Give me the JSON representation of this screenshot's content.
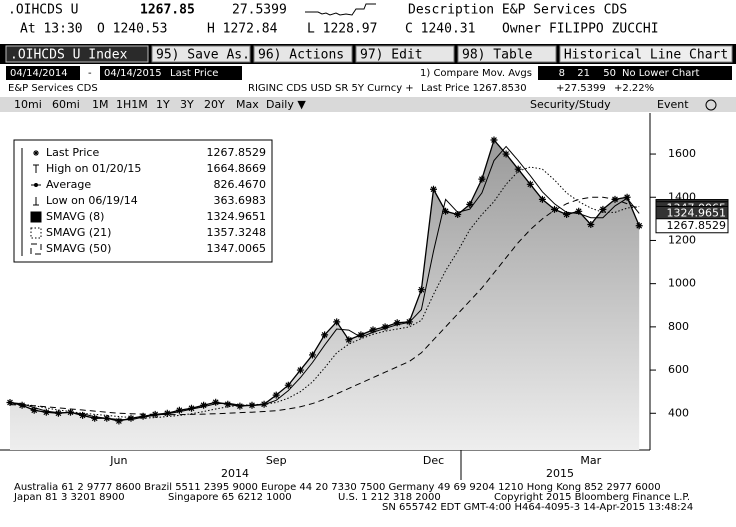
{
  "header": {
    "ticker": ".OIHCDS U",
    "last": "1267.85",
    "change": "27.5399",
    "description": "Description E&P Services CDS",
    "time": "At 13:30",
    "open": "O 1240.53",
    "high": "H 1272.84",
    "low": "L 1228.97",
    "close": "C 1240.31",
    "owner": "Owner FILIPPO ZUCCHI"
  },
  "toolbar": {
    "security": ".OIHCDS U Index",
    "buttons": [
      "95) Save As...",
      "96) Actions",
      "97) Edit",
      "98) Table"
    ],
    "view": "Historical Line Chart"
  },
  "range": {
    "start": "04/14/2014",
    "separator": "-",
    "end": "04/14/2015",
    "field": "Last Price",
    "compare": "1) Compare Mov. Avgs",
    "periods": [
      "8",
      "21",
      "50"
    ],
    "lower": "No Lower Chart"
  },
  "info": {
    "name": "E&P Services CDS",
    "security": "RIGINC CDS USD SR 5Y Curncy +",
    "last": "Last Price 1267.8530",
    "change": "+27.5399",
    "pct": "+2.22%"
  },
  "periods": [
    "10mi",
    "60mi",
    "1M",
    "1H1M",
    "1Y",
    "3Y",
    "20Y",
    "Max",
    "Daily ▼"
  ],
  "menus": [
    "Security/Study",
    "Event"
  ],
  "chart_data": {
    "type": "line",
    "categories": [
      null,
      null,
      null,
      null,
      null,
      null,
      null,
      null,
      null,
      "Jun",
      null,
      null,
      null,
      null,
      null,
      null,
      null,
      null,
      null,
      null,
      null,
      null,
      "Sep",
      null,
      null,
      null,
      null,
      null,
      null,
      null,
      null,
      null,
      null,
      null,
      null,
      "Dec",
      null,
      null,
      null,
      null,
      null,
      null,
      null,
      null,
      null,
      null,
      null,
      null,
      "Mar",
      null,
      null,
      null,
      null
    ],
    "year_labels": [
      "2014",
      "2015"
    ],
    "ylim": [
      230,
      1790
    ],
    "yticks": [
      400,
      600,
      800,
      1000,
      1200,
      1400,
      1600
    ],
    "series": [
      {
        "name": "Last Price",
        "legend_value": "1267.8529",
        "color": "#000000",
        "style": "solid",
        "marker": "star",
        "area": true,
        "values": [
          450,
          437,
          414,
          405,
          400,
          405,
          390,
          377,
          377,
          364,
          377,
          386,
          395,
          400,
          414,
          423,
          437,
          451,
          442,
          433,
          437,
          442,
          484,
          530,
          600,
          670,
          763,
          823,
          740,
          763,
          786,
          800,
          819,
          823,
          972,
          1437,
          1335,
          1320,
          1367,
          1484,
          1665,
          1600,
          1530,
          1460,
          1390,
          1344,
          1320,
          1335,
          1274,
          1344,
          1390,
          1400,
          1268
        ]
      },
      {
        "name": "SMAVG (8)",
        "legend_value": "1324.9651",
        "color": "#000000",
        "style": "solid",
        "values": [
          450,
          444,
          426,
          410,
          403,
          403,
          398,
          384,
          377,
          371,
          370,
          382,
          391,
          398,
          407,
          419,
          430,
          444,
          447,
          438,
          435,
          440,
          460,
          505,
          565,
          635,
          715,
          790,
          785,
          752,
          775,
          793,
          810,
          821,
          880,
          1150,
          1390,
          1330,
          1345,
          1420,
          1570,
          1635,
          1570,
          1500,
          1425,
          1370,
          1330,
          1325,
          1305,
          1305,
          1360,
          1395,
          1325
        ]
      },
      {
        "name": "SMAVG (21)",
        "legend_value": "1357.3248",
        "color": "#000000",
        "style": "dotted",
        "values": [
          445,
          442,
          435,
          425,
          415,
          408,
          400,
          395,
          390,
          385,
          380,
          378,
          380,
          385,
          390,
          398,
          408,
          420,
          430,
          437,
          440,
          442,
          450,
          470,
          500,
          545,
          610,
          680,
          720,
          745,
          765,
          780,
          790,
          800,
          830,
          950,
          1060,
          1150,
          1250,
          1320,
          1380,
          1460,
          1520,
          1540,
          1530,
          1480,
          1420,
          1380,
          1350,
          1330,
          1330,
          1350,
          1357
        ]
      },
      {
        "name": "SMAVG (50)",
        "legend_value": "1347.0065",
        "color": "#000000",
        "style": "dashed",
        "values": [
          440,
          438,
          435,
          430,
          425,
          420,
          415,
          410,
          405,
          400,
          398,
          396,
          395,
          394,
          394,
          395,
          396,
          398,
          400,
          403,
          405,
          408,
          412,
          420,
          430,
          445,
          465,
          490,
          515,
          540,
          565,
          590,
          615,
          640,
          680,
          740,
          800,
          860,
          920,
          980,
          1050,
          1120,
          1190,
          1250,
          1300,
          1340,
          1370,
          1390,
          1400,
          1400,
          1390,
          1370,
          1347
        ]
      }
    ],
    "stats": [
      {
        "label": "High on 01/20/15",
        "value": "1664.8669"
      },
      {
        "label": "Average",
        "value": "826.4670"
      },
      {
        "label": "Low on 06/19/14",
        "value": "363.6983"
      }
    ]
  },
  "footer": [
    "Australia 61 2 9777 8600 Brazil 5511 2395 9000 Europe 44 20 7330 7500 Germany 49 69 9204 1210 Hong Kong 852 2977 6000",
    "Japan 81 3 3201 8900",
    "Singapore 65 6212 1000",
    "U.S. 1 212 318 2000",
    "Copyright 2015 Bloomberg Finance L.P.",
    "SN 655742 EDT  GMT-4:00 H464-4095-3 14-Apr-2015 13:48:24"
  ]
}
